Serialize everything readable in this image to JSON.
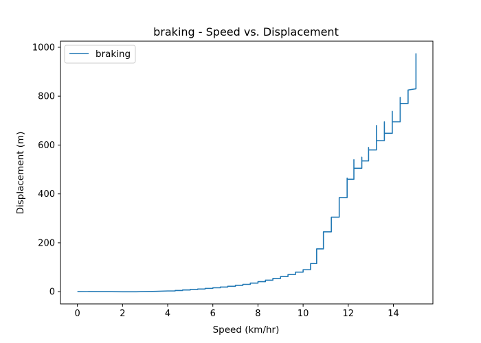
{
  "chart_data": {
    "type": "line",
    "title": "braking - Speed vs. Displacement",
    "xlabel": "Speed (km/hr)",
    "ylabel": "Displacement (m)",
    "xlim": [
      -0.75,
      15.75
    ],
    "ylim": [
      -50,
      1025
    ],
    "xticks": [
      0,
      2,
      4,
      6,
      8,
      10,
      12,
      14
    ],
    "yticks": [
      0,
      200,
      400,
      600,
      800,
      1000
    ],
    "grid": false,
    "legend": {
      "position": "top-left"
    },
    "series": [
      {
        "name": "braking",
        "color": "#1f77b4",
        "points": [
          [
            0,
            0
          ],
          [
            0.5,
            0.2
          ],
          [
            1,
            0.1
          ],
          [
            1.5,
            -0.1
          ],
          [
            2,
            -0.3
          ],
          [
            2.6,
            -0.4
          ],
          [
            3,
            0.2
          ],
          [
            3.5,
            1.5
          ],
          [
            4,
            3
          ],
          [
            4.33,
            3
          ],
          [
            4.33,
            5
          ],
          [
            4.66,
            5
          ],
          [
            4.66,
            7
          ],
          [
            5,
            7
          ],
          [
            5,
            9
          ],
          [
            5.33,
            9
          ],
          [
            5.33,
            11
          ],
          [
            5.66,
            11
          ],
          [
            5.66,
            13.5
          ],
          [
            6,
            13.5
          ],
          [
            6,
            16
          ],
          [
            6.33,
            16
          ],
          [
            6.33,
            19
          ],
          [
            6.66,
            19
          ],
          [
            6.66,
            22
          ],
          [
            7,
            22
          ],
          [
            7,
            26
          ],
          [
            7.33,
            26
          ],
          [
            7.33,
            30
          ],
          [
            7.66,
            30
          ],
          [
            7.66,
            35
          ],
          [
            8,
            35
          ],
          [
            8,
            41
          ],
          [
            8.33,
            41
          ],
          [
            8.33,
            47
          ],
          [
            8.66,
            47
          ],
          [
            8.66,
            54
          ],
          [
            9,
            54
          ],
          [
            9,
            62
          ],
          [
            9.33,
            62
          ],
          [
            9.33,
            70
          ],
          [
            9.66,
            70
          ],
          [
            9.66,
            80
          ],
          [
            10,
            80
          ],
          [
            10,
            90
          ],
          [
            10.33,
            90
          ],
          [
            10.33,
            105
          ],
          [
            10.33,
            115
          ],
          [
            10.6,
            115
          ],
          [
            10.6,
            175
          ],
          [
            10.9,
            175
          ],
          [
            10.9,
            245
          ],
          [
            11.25,
            245
          ],
          [
            11.25,
            305
          ],
          [
            11.6,
            305
          ],
          [
            11.6,
            385
          ],
          [
            11.95,
            385
          ],
          [
            11.95,
            465
          ],
          [
            11.95,
            460
          ],
          [
            12.25,
            460
          ],
          [
            12.25,
            540
          ],
          [
            12.25,
            505
          ],
          [
            12.6,
            505
          ],
          [
            12.6,
            550
          ],
          [
            12.6,
            535
          ],
          [
            12.9,
            535
          ],
          [
            12.9,
            590
          ],
          [
            12.9,
            580
          ],
          [
            13.25,
            580
          ],
          [
            13.25,
            680
          ],
          [
            13.25,
            618
          ],
          [
            13.6,
            618
          ],
          [
            13.6,
            695
          ],
          [
            13.6,
            648
          ],
          [
            13.95,
            648
          ],
          [
            13.95,
            738
          ],
          [
            13.95,
            695
          ],
          [
            14.3,
            695
          ],
          [
            14.3,
            795
          ],
          [
            14.3,
            770
          ],
          [
            14.65,
            770
          ],
          [
            14.65,
            825
          ],
          [
            15,
            830
          ],
          [
            15,
            975
          ]
        ]
      }
    ]
  }
}
